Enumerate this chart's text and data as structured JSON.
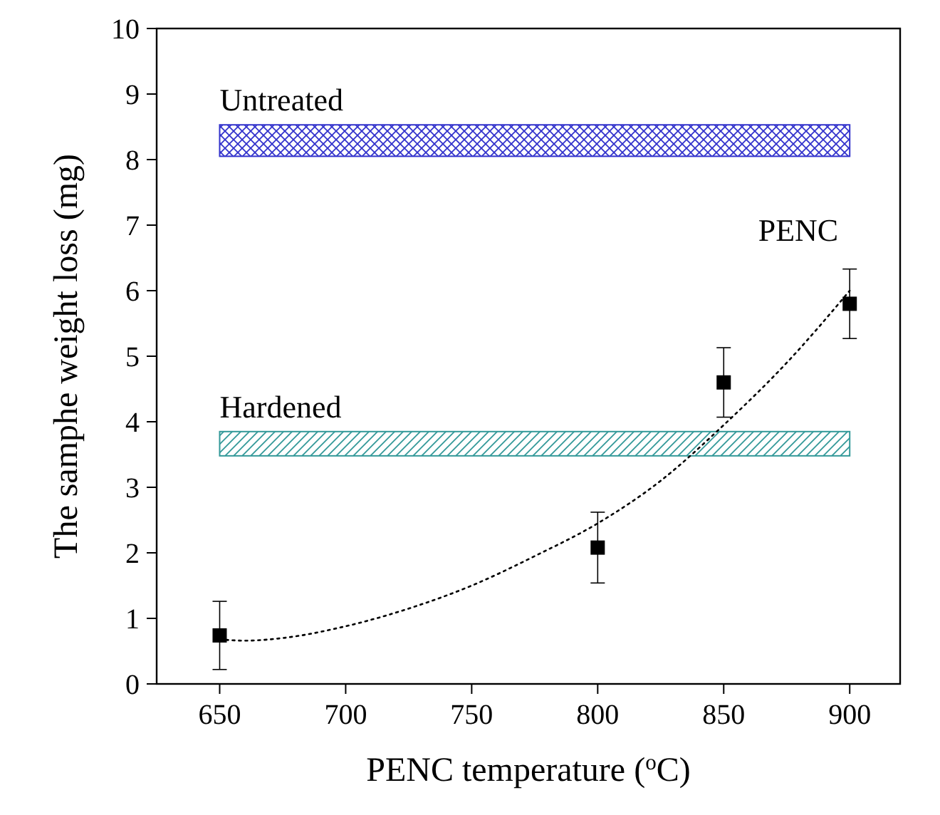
{
  "chart_data": {
    "type": "scatter",
    "xlabel": "PENC temperature ($^{o}$C)",
    "ylabel": "The samphe weight loss (mg)",
    "xlim": [
      625,
      920
    ],
    "xticks": [
      650,
      700,
      750,
      800,
      850,
      900
    ],
    "ylim": [
      0,
      10
    ],
    "yticks": [
      0,
      1,
      2,
      3,
      4,
      5,
      6,
      7,
      8,
      9,
      10
    ],
    "grid": false,
    "series": [
      {
        "name": "PENC",
        "color": "#000000",
        "marker": "square",
        "x": [
          650,
          800,
          850,
          900
        ],
        "values": [
          0.74,
          2.08,
          4.6,
          5.8
        ],
        "errors": [
          0.52,
          0.54,
          0.53,
          0.53
        ]
      },
      {
        "type": "line",
        "color": "#000000",
        "line_style": "dotted",
        "marker": "none",
        "x": [
          650,
          660,
          675,
          700,
          725,
          750,
          775,
          800,
          825,
          850,
          875,
          900
        ],
        "values": [
          0.68,
          0.66,
          0.7,
          0.88,
          1.15,
          1.5,
          1.95,
          2.45,
          3.1,
          3.95,
          4.9,
          6.0
        ]
      }
    ],
    "bands": [
      {
        "axis": "y",
        "from": 8.05,
        "to": 8.53,
        "label": "Untreated",
        "color": "#3333cc"
      },
      {
        "axis": "y",
        "from": 3.48,
        "to": 3.85,
        "label": "Hardened",
        "color": "#339999"
      }
    ]
  }
}
